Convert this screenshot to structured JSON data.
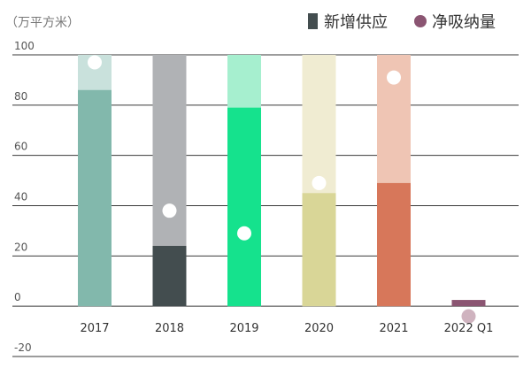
{
  "chart_data": {
    "type": "bar",
    "unit_label": "（万平方米）",
    "categories": [
      "2017",
      "2018",
      "2019",
      "2020",
      "2021",
      "2022 Q1"
    ],
    "ylim": [
      -20,
      100
    ],
    "yticks": [
      100,
      80,
      60,
      40,
      20,
      0,
      -20
    ],
    "grid": true,
    "legend_position": "top-right",
    "series": [
      {
        "name": "新增供应",
        "type": "bar",
        "values": [
          86,
          24,
          79,
          45,
          49,
          2.5
        ]
      },
      {
        "name": "净吸纳量",
        "type": "point",
        "values": [
          97,
          38,
          29,
          49,
          91,
          -4
        ]
      }
    ],
    "colors": {
      "bar": [
        "#82b8ac",
        "#434d4f",
        "#15e28d",
        "#d9d697",
        "#d7775a",
        "#8b5572"
      ],
      "bar_background": [
        "#c9e1dc",
        "#b0b2b5",
        "#a6efcf",
        "#f0ecd2",
        "#efc5b4",
        null
      ],
      "point": [
        "#ffffff",
        "#ffffff",
        "#ffffff",
        "#ffffff",
        "#ffffff",
        "#cfb3bf"
      ],
      "legend_supply": "#434d4f",
      "legend_absorption": "#8b5572",
      "grid": "#3a3a3a"
    }
  }
}
